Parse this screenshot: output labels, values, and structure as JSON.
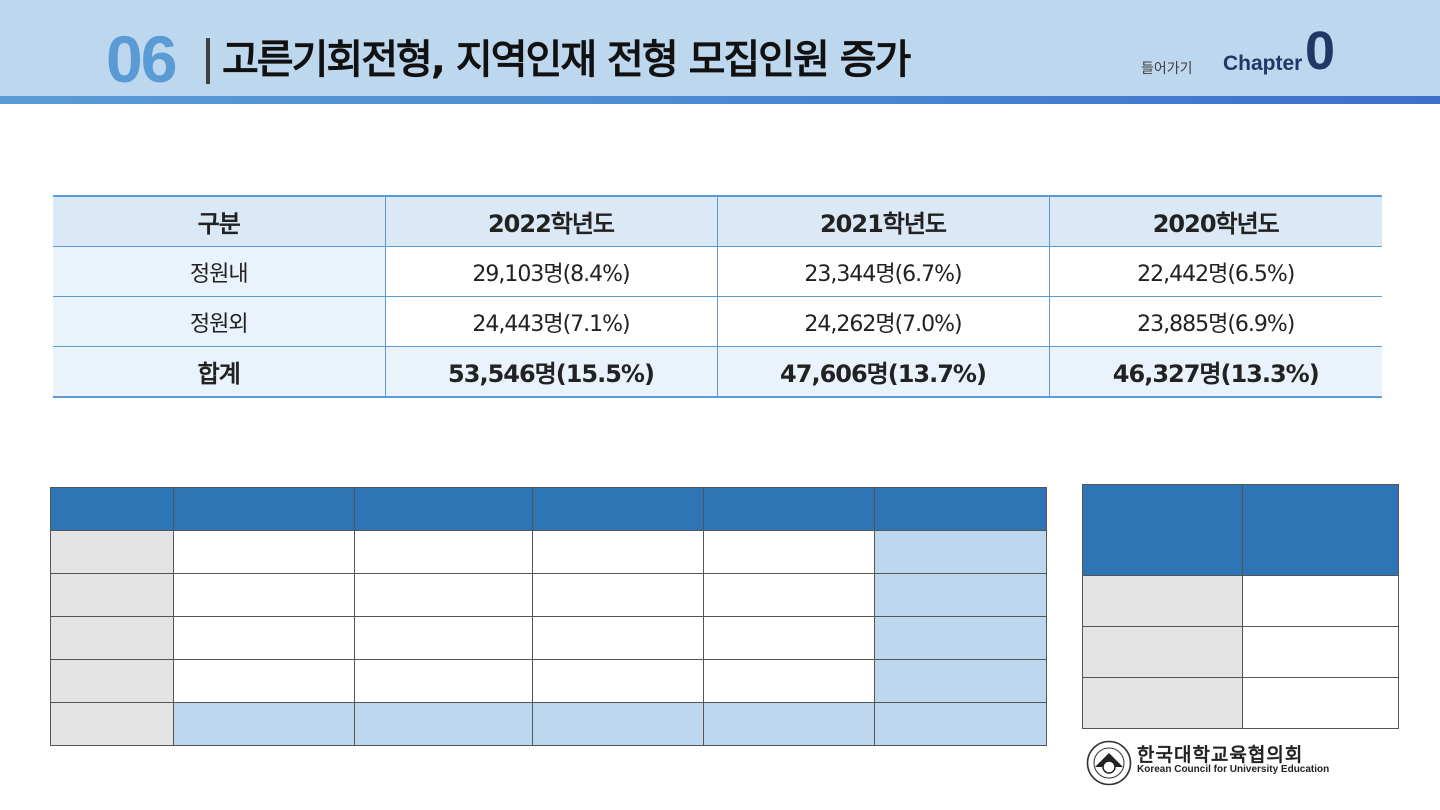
{
  "header": {
    "section_number": "06",
    "title": "고른기회전형, 지역인재 전형 모집인원 증가",
    "back_link": "들어가기",
    "chapter_label": "Chapter",
    "chapter_number": "0"
  },
  "table": {
    "columns": [
      "구분",
      "2022학년도",
      "2021학년도",
      "2020학년도"
    ],
    "rows": [
      {
        "label": "정원내",
        "values": [
          "29,103명(8.4%)",
          "23,344명(6.7%)",
          "22,442명(6.5%)"
        ]
      },
      {
        "label": "정원외",
        "values": [
          "24,443명(7.1%)",
          "24,262명(7.0%)",
          "23,885명(6.9%)"
        ]
      },
      {
        "label": "합계",
        "values": [
          "53,546명(15.5%)",
          "47,606명(13.7%)",
          "46,327명(13.3%)"
        ]
      }
    ]
  },
  "colors": {
    "header_bg": "#bdd7ee",
    "accent": "#5b9bd5",
    "dark_blue": "#2e75b6",
    "navy": "#1f3864"
  },
  "logo": {
    "name_ko": "한국대학교육협의회",
    "name_en": "Korean Council for University Education",
    "icon": "kcue-emblem-icon"
  }
}
